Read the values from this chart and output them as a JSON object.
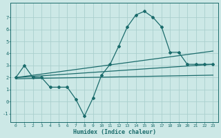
{
  "title": "",
  "xlabel": "Humidex (Indice chaleur)",
  "bg_color": "#cce8e6",
  "grid_color": "#aacfcd",
  "line_color": "#1a6b6b",
  "x_ticks": [
    0,
    1,
    2,
    3,
    4,
    5,
    6,
    7,
    8,
    9,
    10,
    11,
    12,
    13,
    14,
    15,
    16,
    17,
    18,
    19,
    20,
    21,
    22,
    23
  ],
  "y_ticks": [
    -1,
    0,
    1,
    2,
    3,
    4,
    5,
    6,
    7
  ],
  "ylim": [
    -1.7,
    8.2
  ],
  "xlim": [
    -0.6,
    23.6
  ],
  "main_line_x": [
    0,
    1,
    2,
    3,
    4,
    5,
    6,
    7,
    8,
    9,
    10,
    11,
    12,
    13,
    14,
    15,
    16,
    17,
    18,
    19,
    20,
    21,
    22,
    23
  ],
  "main_line_y": [
    2.0,
    3.0,
    2.0,
    2.0,
    1.2,
    1.2,
    1.2,
    0.2,
    -1.2,
    0.3,
    2.2,
    3.1,
    4.6,
    6.2,
    7.2,
    7.5,
    7.0,
    6.2,
    4.1,
    4.1,
    3.1,
    3.1,
    3.1,
    3.1
  ],
  "upper_line_x": [
    0,
    23
  ],
  "upper_line_y": [
    2.0,
    4.2
  ],
  "middle_line_x": [
    0,
    23
  ],
  "middle_line_y": [
    2.0,
    3.1
  ],
  "lower_line_x": [
    0,
    23
  ],
  "lower_line_y": [
    1.9,
    2.2
  ],
  "marker": "D",
  "marker_size": 2.0,
  "line_width": 0.9
}
